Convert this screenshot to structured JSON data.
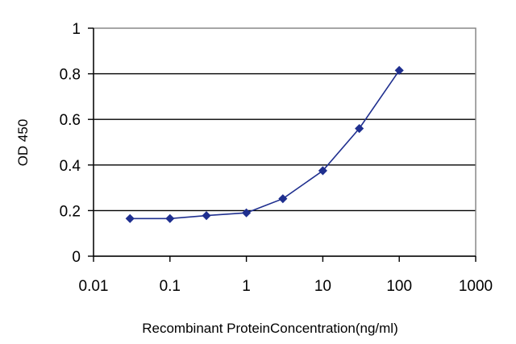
{
  "chart_data": {
    "type": "line",
    "title": "",
    "xlabel": "Recombinant ProteinConcentration(ng/ml)",
    "ylabel": "OD 450",
    "x_scale": "log",
    "xlim": [
      0.01,
      1000
    ],
    "ylim": [
      0,
      1
    ],
    "x_ticks": [
      "0.01",
      "0.1",
      "1",
      "10",
      "100",
      "1000"
    ],
    "y_ticks": [
      "0",
      "0.2",
      "0.4",
      "0.6",
      "0.8",
      "1"
    ],
    "grid": "horizontal",
    "series": [
      {
        "x": [
          0.03,
          0.1,
          0.3,
          1,
          3,
          10,
          30,
          100
        ],
        "y": [
          0.165,
          0.165,
          0.178,
          0.19,
          0.252,
          0.375,
          0.56,
          0.815
        ],
        "color": "#1f2f8f"
      }
    ]
  }
}
